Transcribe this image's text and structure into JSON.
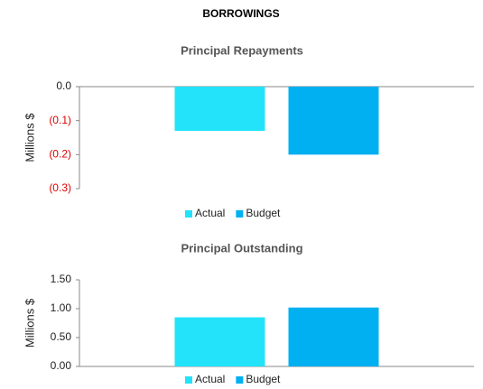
{
  "title": "BORROWINGS",
  "chart_data": [
    {
      "type": "bar",
      "title": "Principal Repayments",
      "y_label": "Millions $",
      "categories": [
        null
      ],
      "series": [
        {
          "name": "Actual",
          "color": "#22e3f9",
          "values": [
            -0.13
          ]
        },
        {
          "name": "Budget",
          "color": "#00b0f0",
          "values": [
            -0.2
          ]
        }
      ],
      "ylim": [
        -0.3,
        0
      ],
      "yticks": [
        {
          "value": 0,
          "label": "0.0"
        },
        {
          "value": -0.1,
          "label": "(0.1)"
        },
        {
          "value": -0.2,
          "label": "(0.2)"
        },
        {
          "value": -0.3,
          "label": "(0.3)"
        }
      ],
      "negative_tick_color": "#e00000",
      "legend": "bottom"
    },
    {
      "type": "bar",
      "title": "Principal Outstanding",
      "y_label": "Millions $",
      "categories": [
        null
      ],
      "series": [
        {
          "name": "Actual",
          "color": "#22e3f9",
          "values": [
            0.85
          ]
        },
        {
          "name": "Budget",
          "color": "#00b0f0",
          "values": [
            1.02
          ]
        }
      ],
      "ylim": [
        0,
        1.5
      ],
      "yticks": [
        {
          "value": 0,
          "label": "0.00"
        },
        {
          "value": 0.5,
          "label": "0.50"
        },
        {
          "value": 1,
          "label": "1.00"
        },
        {
          "value": 1.5,
          "label": "1.50"
        }
      ],
      "negative_tick_color": "#e00000",
      "legend": "bottom"
    }
  ]
}
